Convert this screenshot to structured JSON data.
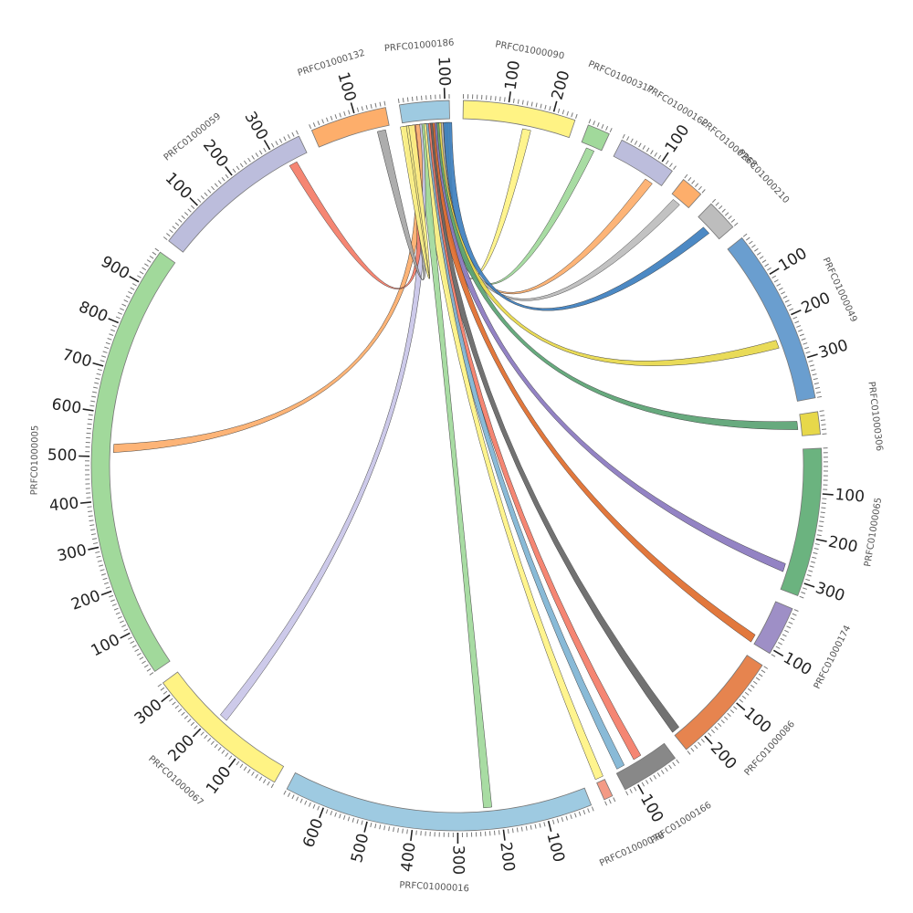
{
  "segments": [
    {
      "id": "PRFC01000186",
      "label": "PRFC01000186",
      "length": 110,
      "color": "#9ecae1",
      "ticks": [
        100
      ]
    },
    {
      "id": "PRFC01000090",
      "label": "PRFC01000090",
      "length": 250,
      "color": "#fff384",
      "ticks": [
        100,
        200
      ]
    },
    {
      "id": "PRFC01000317",
      "label": "PRFC01000317",
      "length": 50,
      "color": "#a1d99b",
      "ticks": []
    },
    {
      "id": "PRFC01000162",
      "label": "PRFC01000162",
      "length": 130,
      "color": "#bcbddc",
      "ticks": [
        100
      ]
    },
    {
      "id": "PRFC01000268",
      "label": "PRFC01000268",
      "length": 50,
      "color": "#fdae6b",
      "ticks": []
    },
    {
      "id": "PRFC01000210",
      "label": "PRFC01000210",
      "length": 70,
      "color": "#bdbdbd",
      "ticks": []
    },
    {
      "id": "PRFC01000049",
      "label": "PRFC01000049",
      "length": 390,
      "color": "#6a9ecf",
      "ticks": [
        100,
        200,
        300
      ]
    },
    {
      "id": "PRFC01000306",
      "label": "PRFC01000306",
      "length": 50,
      "color": "#e7d84a",
      "ticks": []
    },
    {
      "id": "PRFC01000065",
      "label": "PRFC01000065",
      "length": 330,
      "color": "#6bb37f",
      "ticks": [
        100,
        200,
        300
      ]
    },
    {
      "id": "PRFC01000174",
      "label": "PRFC01000174",
      "length": 110,
      "color": "#9e8fc6",
      "ticks": [
        100
      ]
    },
    {
      "id": "PRFC01000086",
      "label": "PRFC01000086",
      "length": 250,
      "color": "#e6844f",
      "ticks": [
        100,
        200
      ]
    },
    {
      "id": "PRFC01000166",
      "label": "PRFC01000166",
      "length": 130,
      "color": "#888888",
      "ticks": [
        100
      ]
    },
    {
      "id": "PRFC01000078",
      "label": "PRFC01000078",
      "length": 20,
      "color": "#f39a85",
      "ticks": []
    },
    {
      "id": "PRFC01000016",
      "label": "PRFC01000016",
      "length": 690,
      "color": "#9ecae1",
      "ticks": [
        100,
        200,
        300,
        400,
        500,
        600
      ]
    },
    {
      "id": "PRFC01000067",
      "label": "PRFC01000067",
      "length": 330,
      "color": "#fff384",
      "ticks": [
        100,
        200,
        300
      ]
    },
    {
      "id": "PRFC01000005",
      "label": "PRFC01000005",
      "length": 980,
      "color": "#a1d99b",
      "ticks": [
        100,
        200,
        300,
        400,
        500,
        600,
        700,
        800,
        900
      ]
    },
    {
      "id": "PRFC01000059",
      "label": "PRFC01000059",
      "length": 370,
      "color": "#bcbddc",
      "ticks": [
        100,
        200,
        300
      ]
    },
    {
      "id": "PRFC01000132",
      "label": "PRFC01000132",
      "length": 170,
      "color": "#fdae6b",
      "ticks": [
        100
      ]
    }
  ],
  "links": [
    {
      "source": "PRFC01000186",
      "source_pos": 100,
      "target": "PRFC01000090",
      "target_pos": 150,
      "color": "#fff384"
    },
    {
      "source": "PRFC01000186",
      "source_pos": 95,
      "target": "PRFC01000317",
      "target_pos": 25,
      "color": "#a1d99b"
    },
    {
      "source": "PRFC01000186",
      "source_pos": 90,
      "target": "PRFC01000162",
      "target_pos": 100,
      "color": "#fdae6b"
    },
    {
      "source": "PRFC01000186",
      "source_pos": 85,
      "target": "PRFC01000268",
      "target_pos": 20,
      "color": "#bdbdbd"
    },
    {
      "source": "PRFC01000186",
      "source_pos": 105,
      "target": "PRFC01000210",
      "target_pos": 35,
      "color": "#3d7fbf"
    },
    {
      "source": "PRFC01000186",
      "source_pos": 80,
      "target": "PRFC01000049",
      "target_pos": 250,
      "color": "#e7d84a"
    },
    {
      "source": "PRFC01000186",
      "source_pos": 75,
      "target": "PRFC01000306",
      "target_pos": 25,
      "color": "#5aa373"
    },
    {
      "source": "PRFC01000186",
      "source_pos": 70,
      "target": "PRFC01000065",
      "target_pos": 280,
      "color": "#8a78bf"
    },
    {
      "source": "PRFC01000186",
      "source_pos": 65,
      "target": "PRFC01000174",
      "target_pos": 100,
      "color": "#e06c2c"
    },
    {
      "source": "PRFC01000186",
      "source_pos": 60,
      "target": "PRFC01000086",
      "target_pos": 240,
      "color": "#666666"
    },
    {
      "source": "PRFC01000186",
      "source_pos": 55,
      "target": "PRFC01000166",
      "target_pos": 70,
      "color": "#f47c67"
    },
    {
      "source": "PRFC01000186",
      "source_pos": 50,
      "target": "PRFC01000166",
      "target_pos": 115,
      "color": "#7fb4d4"
    },
    {
      "source": "PRFC01000186",
      "source_pos": 45,
      "target": "PRFC01000078",
      "target_pos": 10,
      "color": "#fff384"
    },
    {
      "source": "PRFC01000186",
      "source_pos": 40,
      "target": "PRFC01000016",
      "target_pos": 230,
      "color": "#a1d99b"
    },
    {
      "source": "PRFC01000186",
      "source_pos": 35,
      "target": "PRFC01000067",
      "target_pos": 180,
      "color": "#c9c5e8"
    },
    {
      "source": "PRFC01000186",
      "source_pos": 30,
      "target": "PRFC01000005",
      "target_pos": 520,
      "color": "#fdae6b"
    },
    {
      "source": "PRFC01000186",
      "source_pos": 20,
      "target": "PRFC01000059",
      "target_pos": 330,
      "color": "#f47c67"
    },
    {
      "source": "PRFC01000186",
      "source_pos": 10,
      "target": "PRFC01000132",
      "target_pos": 150,
      "color": "#a6a6a6"
    },
    {
      "source": "PRFC01000186",
      "source_pos": 4,
      "target": "PRFC01000186",
      "target_pos": 18,
      "color": "#fff384"
    }
  ]
}
